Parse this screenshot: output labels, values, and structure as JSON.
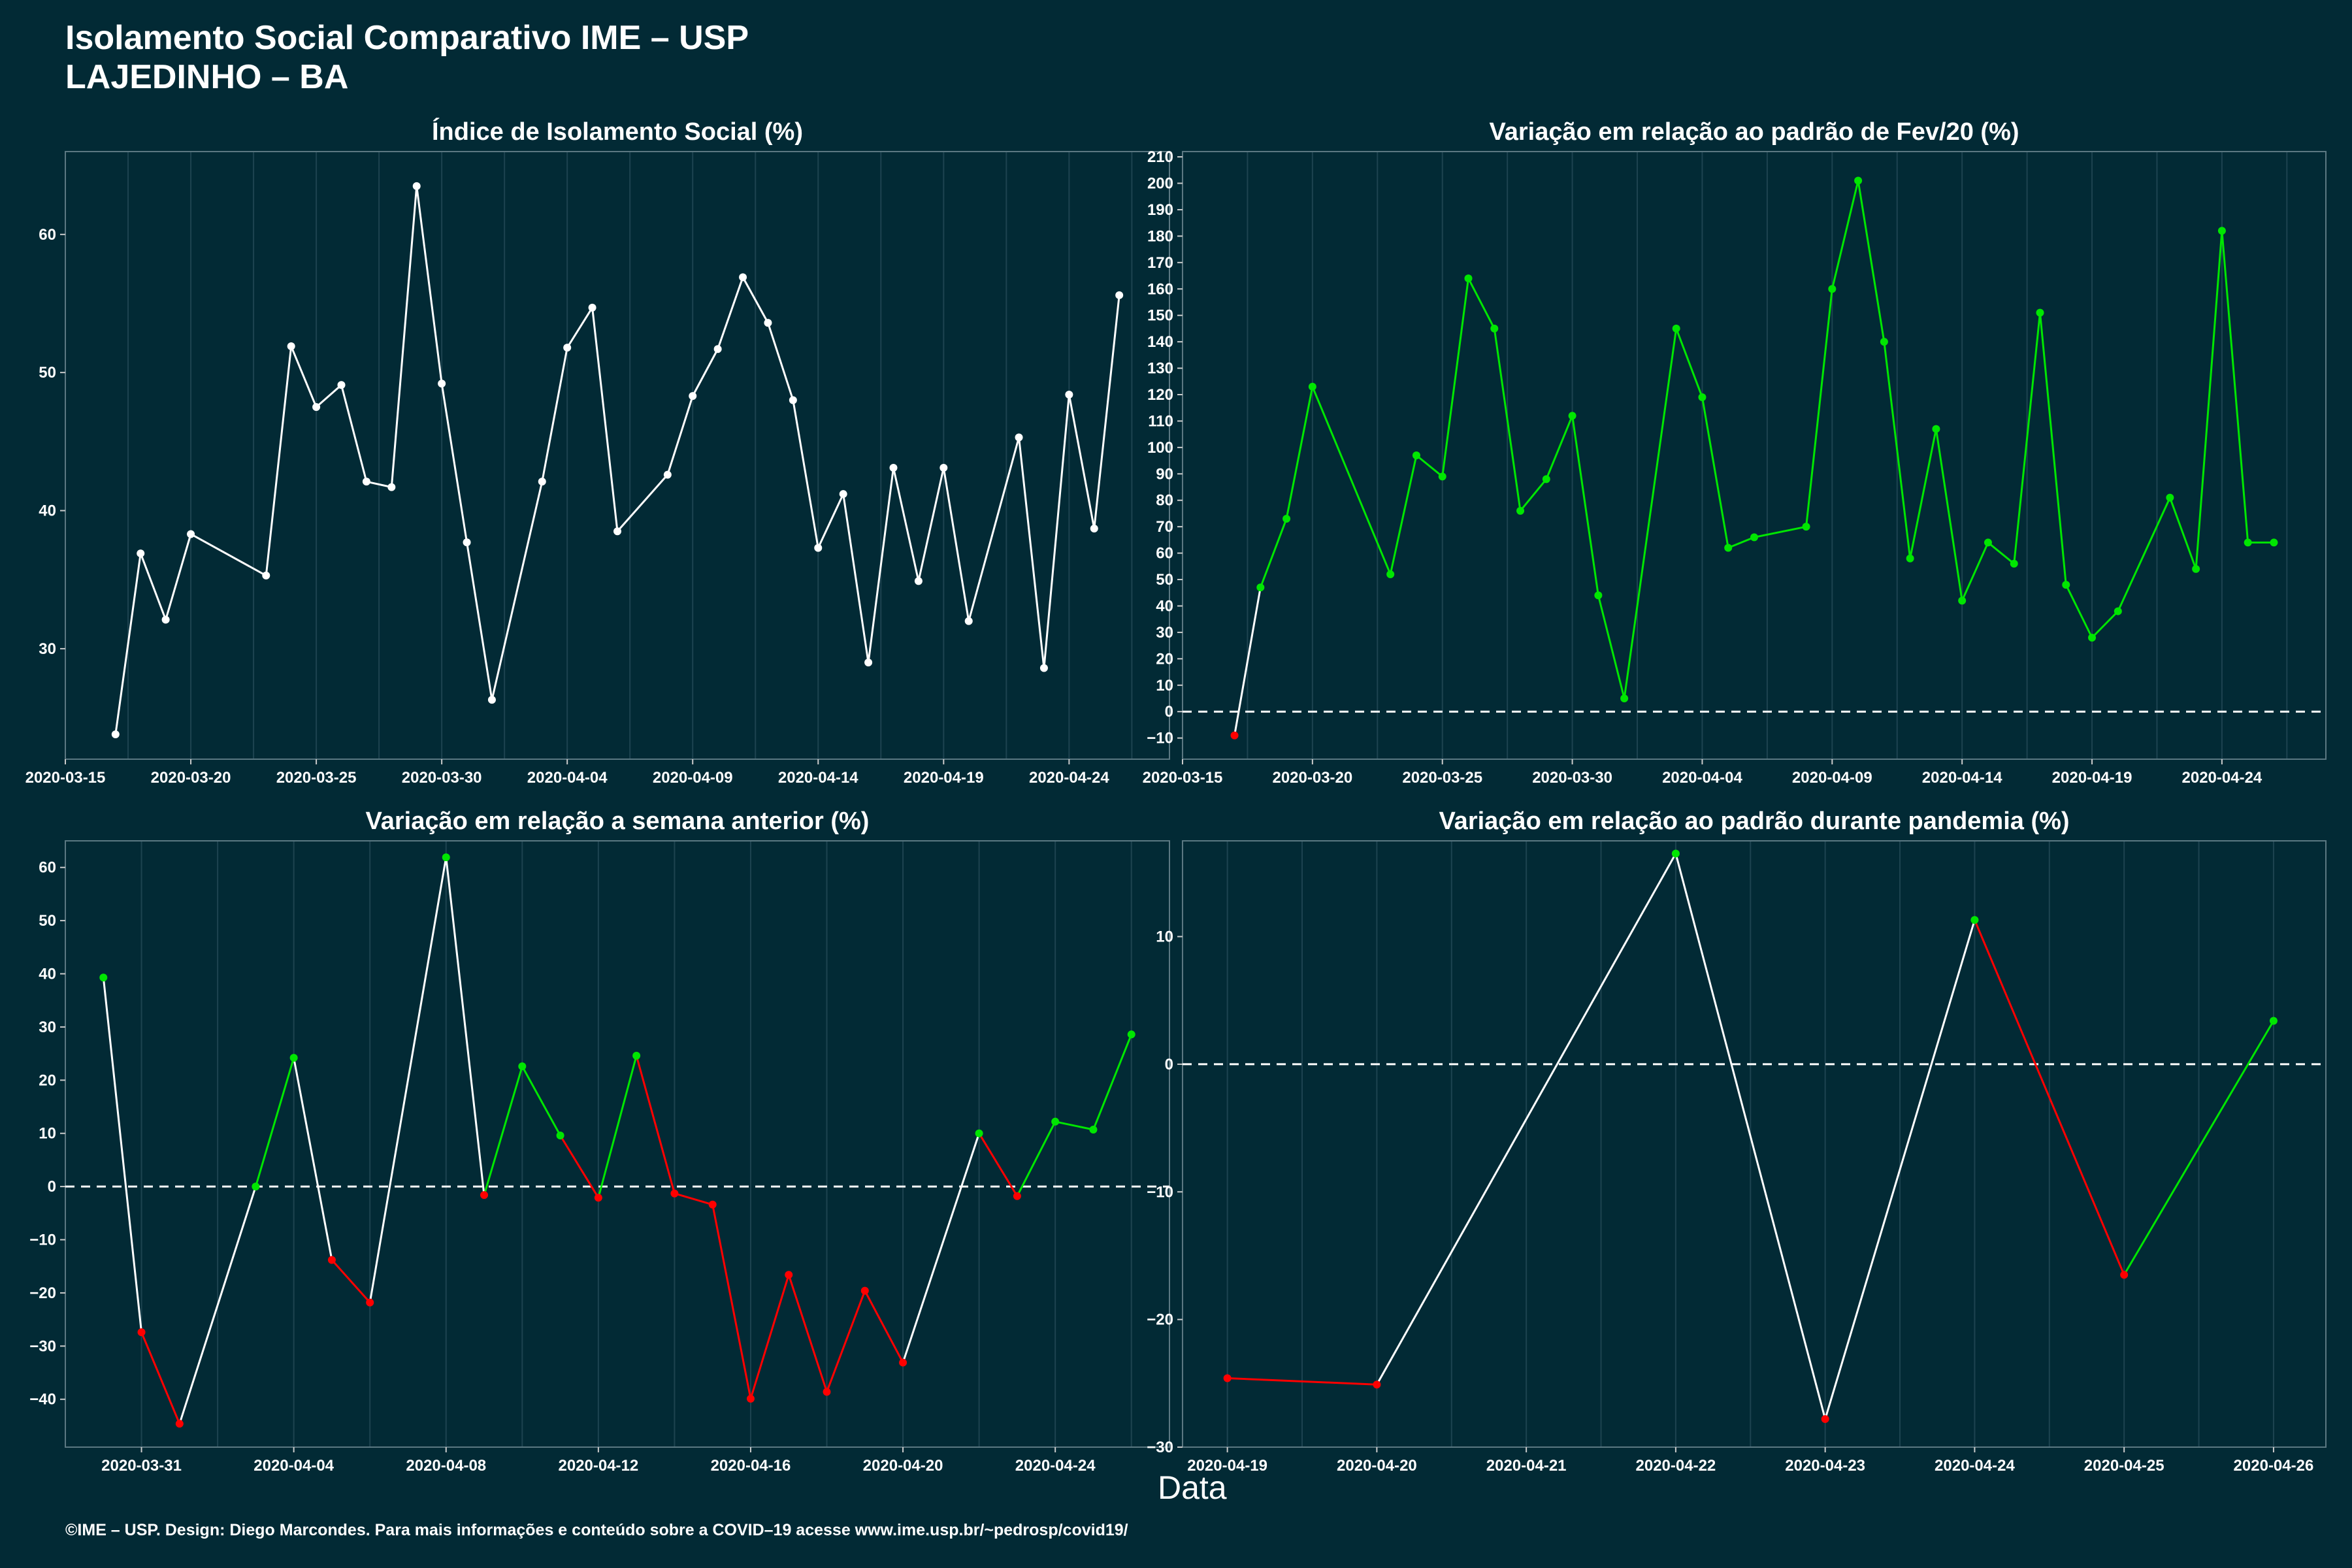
{
  "header": {
    "title": "Isolamento Social Comparativo IME – USP",
    "subtitle": "LAJEDINHO – BA"
  },
  "footer": "©IME – USP. Design: Diego Marcondes. Para mais informações e conteúdo sobre a COVID–19 acesse www.ime.usp.br/~pedrosp/covid19/",
  "x_axis_label": "Data",
  "colors": {
    "background": "#022a35",
    "neutral": "#ffffff",
    "increase": "#00e600",
    "decrease": "#ff0000"
  },
  "chart_data": [
    {
      "type": "line",
      "title": "Índice de Isolamento Social (%)",
      "xlim": [
        "2020-03-15",
        "2020-04-28"
      ],
      "ylim": [
        22,
        66
      ],
      "x_ticks": [
        "2020-03-15",
        "2020-03-20",
        "2020-03-25",
        "2020-03-30",
        "2020-04-04",
        "2020-04-09",
        "2020-04-14",
        "2020-04-19",
        "2020-04-24"
      ],
      "y_ticks": [
        30,
        40,
        50,
        60
      ],
      "grid": true,
      "color_mode": "single",
      "x": [
        "2020-03-17",
        "2020-03-18",
        "2020-03-19",
        "2020-03-20",
        "2020-03-23",
        "2020-03-24",
        "2020-03-25",
        "2020-03-26",
        "2020-03-27",
        "2020-03-28",
        "2020-03-29",
        "2020-03-30",
        "2020-03-31",
        "2020-04-01",
        "2020-04-03",
        "2020-04-04",
        "2020-04-05",
        "2020-04-06",
        "2020-04-08",
        "2020-04-09",
        "2020-04-10",
        "2020-04-11",
        "2020-04-12",
        "2020-04-13",
        "2020-04-14",
        "2020-04-15",
        "2020-04-16",
        "2020-04-17",
        "2020-04-18",
        "2020-04-19",
        "2020-04-20",
        "2020-04-22",
        "2020-04-23",
        "2020-04-24",
        "2020-04-25",
        "2020-04-26"
      ],
      "values": [
        23.8,
        36.9,
        32.1,
        38.3,
        35.3,
        51.9,
        47.5,
        49.1,
        42.1,
        41.7,
        63.5,
        49.2,
        37.7,
        26.3,
        42.1,
        51.8,
        54.7,
        38.5,
        42.6,
        48.3,
        51.7,
        56.9,
        53.6,
        48.0,
        37.3,
        41.2,
        29.0,
        43.1,
        34.9,
        43.1,
        32.0,
        45.3,
        28.6,
        48.4,
        38.7,
        55.6
      ]
    },
    {
      "type": "line",
      "title": "Variação em relação ao padrão de Fev/20 (%)",
      "xlim": [
        "2020-03-15",
        "2020-04-28"
      ],
      "ylim": [
        -18,
        212
      ],
      "x_ticks": [
        "2020-03-15",
        "2020-03-20",
        "2020-03-25",
        "2020-03-30",
        "2020-04-04",
        "2020-04-09",
        "2020-04-14",
        "2020-04-19",
        "2020-04-24"
      ],
      "y_ticks": [
        -10,
        0,
        10,
        20,
        30,
        40,
        50,
        60,
        70,
        80,
        90,
        100,
        110,
        120,
        130,
        140,
        150,
        160,
        170,
        180,
        190,
        200,
        210
      ],
      "grid": true,
      "reference_line": 0,
      "color_mode": "sign",
      "x": [
        "2020-03-17",
        "2020-03-18",
        "2020-03-19",
        "2020-03-20",
        "2020-03-23",
        "2020-03-24",
        "2020-03-25",
        "2020-03-26",
        "2020-03-27",
        "2020-03-28",
        "2020-03-29",
        "2020-03-30",
        "2020-03-31",
        "2020-04-01",
        "2020-04-03",
        "2020-04-04",
        "2020-04-05",
        "2020-04-06",
        "2020-04-08",
        "2020-04-09",
        "2020-04-10",
        "2020-04-11",
        "2020-04-12",
        "2020-04-13",
        "2020-04-14",
        "2020-04-15",
        "2020-04-16",
        "2020-04-17",
        "2020-04-18",
        "2020-04-19",
        "2020-04-20",
        "2020-04-22",
        "2020-04-23",
        "2020-04-24",
        "2020-04-25",
        "2020-04-26"
      ],
      "values": [
        -9,
        47,
        73,
        123,
        52,
        97,
        89,
        164,
        145,
        76,
        88,
        112,
        44,
        5,
        145,
        119,
        62,
        66,
        70,
        160,
        201,
        140,
        58,
        107,
        42,
        64,
        56,
        151,
        48,
        28,
        38,
        81,
        54,
        182,
        64,
        64
      ]
    },
    {
      "type": "line",
      "title": "Variação em relação a semana anterior (%)",
      "xlim": [
        "2020-03-29",
        "2020-04-27"
      ],
      "ylim": [
        -49,
        65
      ],
      "x_ticks": [
        "2020-03-31",
        "2020-04-04",
        "2020-04-08",
        "2020-04-12",
        "2020-04-16",
        "2020-04-20",
        "2020-04-24"
      ],
      "y_ticks": [
        -40,
        -30,
        -20,
        -10,
        0,
        10,
        20,
        30,
        40,
        50,
        60
      ],
      "grid": true,
      "reference_line": 0,
      "color_mode": "sign",
      "x": [
        "2020-03-30",
        "2020-03-31",
        "2020-04-01",
        "2020-04-03",
        "2020-04-04",
        "2020-04-05",
        "2020-04-06",
        "2020-04-08",
        "2020-04-09",
        "2020-04-10",
        "2020-04-11",
        "2020-04-12",
        "2020-04-13",
        "2020-04-14",
        "2020-04-15",
        "2020-04-16",
        "2020-04-17",
        "2020-04-18",
        "2020-04-19",
        "2020-04-20",
        "2020-04-22",
        "2020-04-23",
        "2020-04-24",
        "2020-04-25",
        "2020-04-26"
      ],
      "values": [
        39.3,
        -27.4,
        -44.6,
        0,
        24.2,
        -13.8,
        -21.8,
        61.9,
        -1.6,
        22.6,
        9.6,
        -2.1,
        24.6,
        -1.3,
        -3.4,
        -39.9,
        -16.6,
        -38.6,
        -19.6,
        -33.1,
        10.0,
        -1.8,
        12.2,
        10.7,
        28.6
      ]
    },
    {
      "type": "line",
      "title": "Variação em relação ao padrão durante pandemia (%)",
      "xlim": [
        "2020-04-18.7",
        "2020-04-26.35"
      ],
      "ylim": [
        -30,
        17.5
      ],
      "x_ticks": [
        "2020-04-19",
        "2020-04-20",
        "2020-04-21",
        "2020-04-22",
        "2020-04-23",
        "2020-04-24",
        "2020-04-25",
        "2020-04-26"
      ],
      "y_ticks": [
        -30,
        -20,
        -10,
        0,
        10
      ],
      "grid": true,
      "reference_line": 0,
      "color_mode": "sign",
      "x": [
        "2020-04-19",
        "2020-04-20",
        "2020-04-22",
        "2020-04-23",
        "2020-04-24",
        "2020-04-25",
        "2020-04-26"
      ],
      "values": [
        -24.6,
        -25.1,
        16.5,
        -27.8,
        11.3,
        -16.5,
        3.4
      ]
    }
  ]
}
